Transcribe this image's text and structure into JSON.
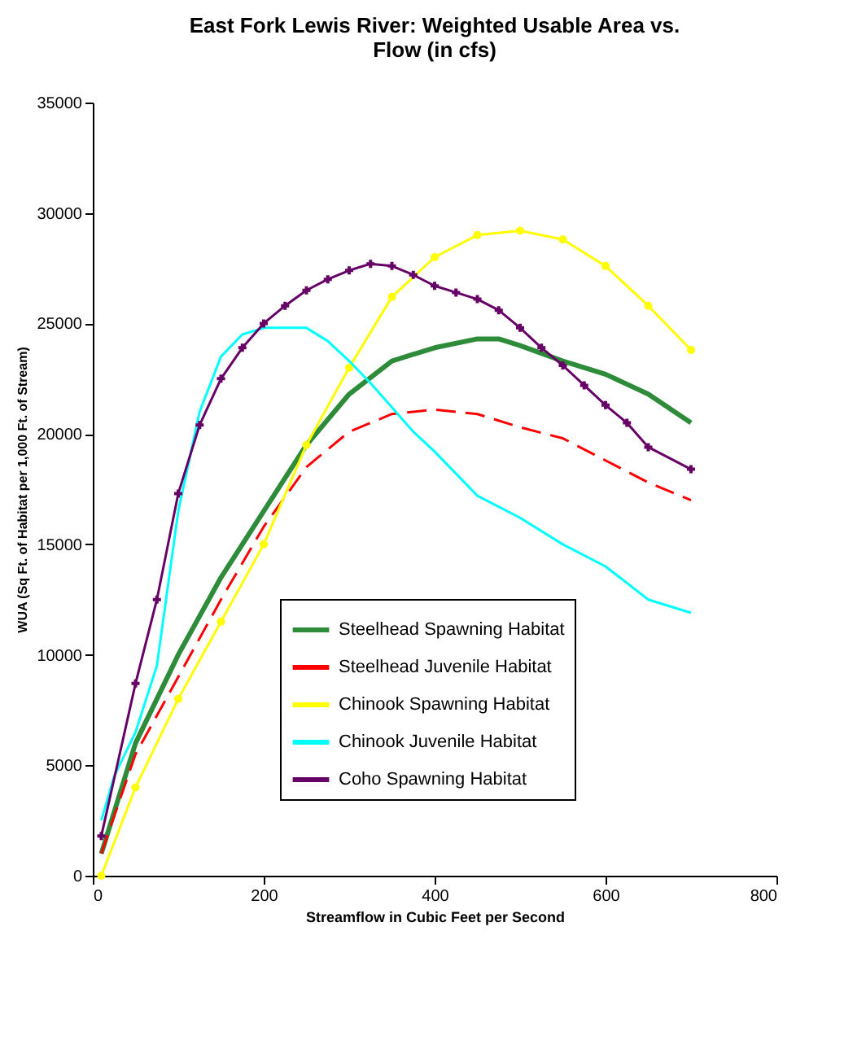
{
  "chart_data": {
    "type": "line",
    "title": "East Fork Lewis River: Weighted Usable Area vs. Flow (in cfs)",
    "xlabel": "Streamflow in Cubic Feet per Second",
    "ylabel": "WUA (Sq Ft. of Habitat per 1,000 Ft. of Stream)",
    "xlim": [
      0,
      800
    ],
    "xticks": [
      0,
      200,
      400,
      600,
      800
    ],
    "ylim": [
      0,
      35000
    ],
    "yticks": [
      0,
      5000,
      10000,
      15000,
      20000,
      25000,
      30000,
      35000
    ],
    "grid": false,
    "legend": "bottom",
    "x": [
      10,
      50,
      75,
      100,
      125,
      150,
      175,
      200,
      225,
      250,
      275,
      300,
      325,
      350,
      375,
      400,
      425,
      450,
      475,
      500,
      525,
      550,
      575,
      600,
      625,
      650,
      700
    ],
    "series": [
      {
        "name": "Steelhead Spawning Habitat",
        "color": "#2e8b3a",
        "line_style": "solid",
        "marker": "none",
        "x": [
          10,
          50,
          75,
          100,
          150,
          200,
          250,
          300,
          350,
          400,
          450,
          475,
          500,
          550,
          600,
          650,
          700
        ],
        "values": [
          1000,
          6000,
          8000,
          10000,
          13500,
          16500,
          19500,
          21800,
          23300,
          23900,
          24300,
          24300,
          24000,
          23300,
          22700,
          21800,
          20500
        ]
      },
      {
        "name": "Steelhead Juvenile Habitat",
        "color": "#ff0000",
        "line_style": "dashed",
        "marker": "none",
        "x": [
          10,
          50,
          100,
          150,
          200,
          250,
          300,
          350,
          400,
          450,
          500,
          550,
          600,
          650,
          700
        ],
        "values": [
          1000,
          5500,
          9000,
          12500,
          15800,
          18500,
          20100,
          20900,
          21100,
          20900,
          20300,
          19800,
          18800,
          17800,
          17000
        ]
      },
      {
        "name": "Chinook Spawning Habitat",
        "color": "#ffff00",
        "line_style": "solid",
        "marker": "circle",
        "x": [
          10,
          50,
          100,
          150,
          200,
          250,
          300,
          350,
          400,
          450,
          500,
          550,
          600,
          650,
          700
        ],
        "values": [
          0,
          4000,
          8000,
          11500,
          15000,
          19500,
          23000,
          26200,
          28000,
          29000,
          29200,
          28800,
          27600,
          25800,
          23800
        ]
      },
      {
        "name": "Chinook Juvenile Habitat",
        "color": "#00ffff",
        "line_style": "solid",
        "marker": "none",
        "x": [
          10,
          25,
          50,
          75,
          100,
          125,
          150,
          175,
          200,
          250,
          275,
          300,
          325,
          350,
          375,
          400,
          450,
          500,
          550,
          600,
          650,
          700
        ],
        "values": [
          2500,
          4500,
          6500,
          9500,
          16500,
          21000,
          23500,
          24500,
          24800,
          24800,
          24200,
          23300,
          22300,
          21200,
          20100,
          19200,
          17200,
          16200,
          15000,
          14000,
          12500,
          11900
        ]
      },
      {
        "name": "Coho Spawning Habitat",
        "color": "#660066",
        "line_style": "solid",
        "marker": "cross",
        "values": [
          1800,
          8700,
          12500,
          17300,
          20400,
          22500,
          23900,
          25000,
          25800,
          26500,
          27000,
          27400,
          27700,
          27600,
          27200,
          26700,
          26400,
          26100,
          25600,
          24800,
          23900,
          23100,
          22200,
          21300,
          20500,
          19400,
          18400
        ]
      }
    ]
  }
}
